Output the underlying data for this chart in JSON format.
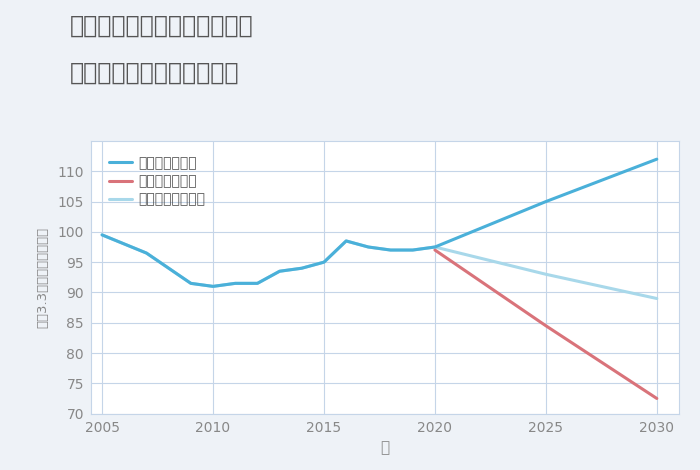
{
  "title_line1": "三重県伊賀市上野下幸坂町の",
  "title_line2": "中古マンションの価格推移",
  "xlabel": "年",
  "ylabel": "坪（3.3㎡）単価（万円）",
  "ylim": [
    70,
    115
  ],
  "xlim": [
    2004.5,
    2031
  ],
  "yticks": [
    70,
    75,
    80,
    85,
    90,
    95,
    100,
    105,
    110
  ],
  "xticks": [
    2005,
    2010,
    2015,
    2020,
    2025,
    2030
  ],
  "background_color": "#eef2f7",
  "plot_bg_color": "#ffffff",
  "grid_color": "#c5d5e8",
  "good_scenario": {
    "label": "グッドシナリオ",
    "color": "#4ab0d9",
    "x": [
      2005,
      2007,
      2009,
      2010,
      2011,
      2012,
      2013,
      2014,
      2015,
      2016,
      2017,
      2018,
      2019,
      2020,
      2025,
      2030
    ],
    "y": [
      99.5,
      96.5,
      91.5,
      91.0,
      91.5,
      91.5,
      93.5,
      94.0,
      95.0,
      98.5,
      97.5,
      97.0,
      97.0,
      97.5,
      105.0,
      112.0
    ]
  },
  "bad_scenario": {
    "label": "バッドシナリオ",
    "color": "#d9737a",
    "x": [
      2020,
      2025,
      2030
    ],
    "y": [
      97.0,
      84.5,
      72.5
    ]
  },
  "normal_scenario": {
    "label": "ノーマルシナリオ",
    "color": "#a8d8ea",
    "x": [
      2005,
      2007,
      2009,
      2010,
      2011,
      2012,
      2013,
      2014,
      2015,
      2016,
      2017,
      2018,
      2019,
      2020,
      2025,
      2030
    ],
    "y": [
      99.5,
      96.5,
      91.5,
      91.0,
      91.5,
      91.5,
      93.5,
      94.0,
      95.0,
      98.5,
      97.5,
      97.0,
      97.0,
      97.5,
      93.0,
      89.0
    ]
  },
  "title_color": "#555555",
  "axis_label_color": "#888888",
  "tick_color": "#888888",
  "legend_text_color": "#555555",
  "title_fontsize": 17,
  "legend_fontsize": 10,
  "tick_fontsize": 10
}
